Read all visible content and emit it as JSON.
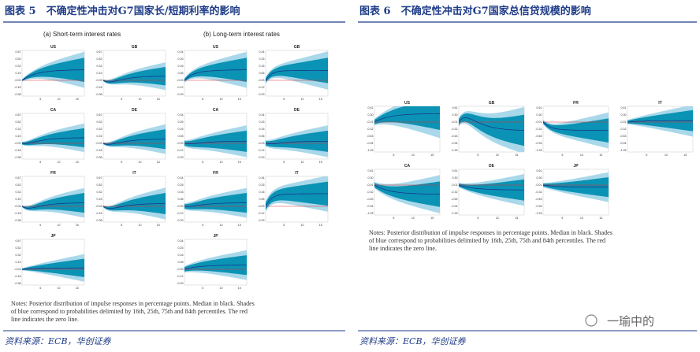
{
  "figure5": {
    "title": "图表 5　不确定性冲击对G7国家长/短期利率的影响",
    "short_title": "(a) Short-term interest rates",
    "long_title": "(b) Long-term interest rates",
    "short_panels": [
      "US",
      "GB",
      "CA",
      "DE",
      "FR",
      "IT",
      "JP"
    ],
    "long_panels": [
      "US",
      "GB",
      "CA",
      "DE",
      "FR",
      "IT",
      "JP"
    ],
    "short_yticks": [
      "0.67",
      "0.52",
      "0.32",
      "0.15",
      "-0.03",
      "-0.18",
      "-0.38"
    ],
    "long_yticks": [
      "0.34",
      "0.25",
      "0.16",
      "0.06",
      "-0.03",
      "-0.12",
      "-0.29"
    ],
    "xticks": [
      "5",
      "10",
      "15"
    ],
    "notes": [
      "Notes: Posterior distribution of impulse responses in percentage points. Median in black. Shades",
      "of blue correspond to probabilities delimited by 16th, 25th, 75th and 84th percentiles. The red",
      "line indicates the zero line."
    ],
    "source": "资料来源：ECB，华创证券"
  },
  "figure6": {
    "title": "图表 6　不确定性冲击对G7国家总信贷规模的影响",
    "panels": [
      "US",
      "GB",
      "FR",
      "IT",
      "CA",
      "DE",
      "JP"
    ],
    "yticks": [
      "0.61",
      "0.30",
      "-0.01",
      "-0.32",
      "-0.63",
      "-0.94",
      "-1.25"
    ],
    "xticks": [
      "5",
      "10",
      "15"
    ],
    "notes": [
      "Notes: Posterior distribution of impulse responses in percentage points. Median in black. Shades",
      "of blue correspond to probabilities delimited by 16th, 25th, 75th and 84th percentiles. The red",
      "line indicates the zero line."
    ],
    "source": "资料来源：ECB，华创证券"
  },
  "watermark": "一瑜中的"
}
